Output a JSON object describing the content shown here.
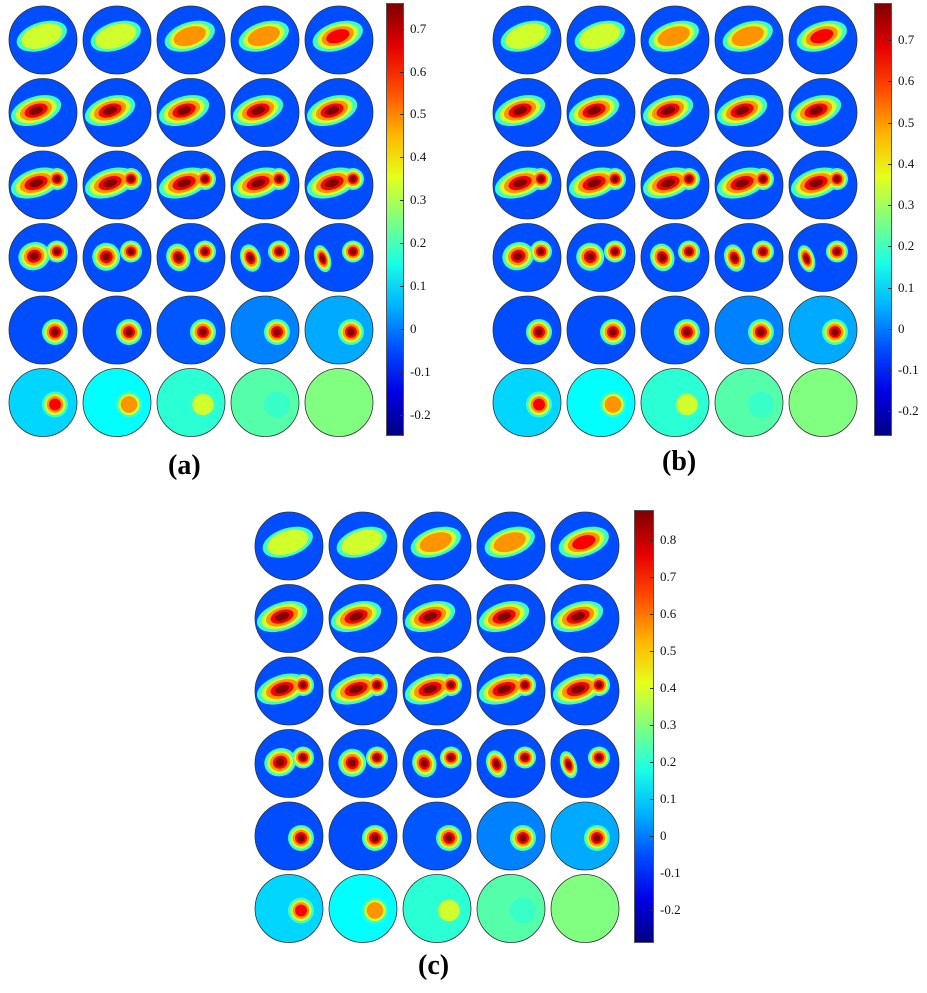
{
  "panels": [
    {
      "id": "a",
      "label": "(a)",
      "colorbar": {
        "min": -0.25,
        "max": 0.76,
        "ticks": [
          "0.7",
          "0.6",
          "0.5",
          "0.4",
          "0.3",
          "0.2",
          "0.1",
          "0",
          "-0.1",
          "-0.2"
        ],
        "tick_values": [
          0.7,
          0.6,
          0.5,
          0.4,
          0.3,
          0.2,
          0.1,
          0,
          -0.1,
          -0.2
        ]
      },
      "grid": {
        "rows": 6,
        "cols": 5
      }
    },
    {
      "id": "b",
      "label": "(b)",
      "colorbar": {
        "min": -0.26,
        "max": 0.79,
        "ticks": [
          "0.7",
          "0.6",
          "0.5",
          "0.4",
          "0.3",
          "0.2",
          "0.1",
          "0",
          "-0.1",
          "-0.2"
        ],
        "tick_values": [
          0.7,
          0.6,
          0.5,
          0.4,
          0.3,
          0.2,
          0.1,
          0,
          -0.1,
          -0.2
        ]
      },
      "grid": {
        "rows": 6,
        "cols": 5
      }
    },
    {
      "id": "c",
      "label": "(c)",
      "colorbar": {
        "min": -0.29,
        "max": 0.88,
        "ticks": [
          "0.8",
          "0.7",
          "0.6",
          "0.5",
          "0.4",
          "0.3",
          "0.2",
          "0.1",
          "0",
          "-0.1",
          "-0.2"
        ],
        "tick_values": [
          0.8,
          0.7,
          0.6,
          0.5,
          0.4,
          0.3,
          0.2,
          0.1,
          0,
          -0.1,
          -0.2
        ]
      },
      "grid": {
        "rows": 6,
        "cols": 5
      }
    }
  ],
  "colormap": "jet"
}
